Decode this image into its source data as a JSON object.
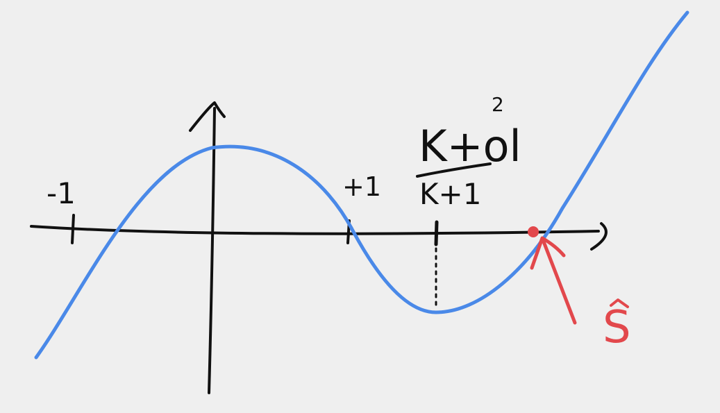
{
  "colors": {
    "paper": "#efefef",
    "ink": "#111111",
    "curve": "#4a89e8",
    "highlight": "#e2484c"
  },
  "labels": {
    "minus_one": "-1",
    "plus_one": "+1",
    "numerator": "K+ol",
    "exponent": "2",
    "denominator": "K+1",
    "s_label": "S"
  }
}
